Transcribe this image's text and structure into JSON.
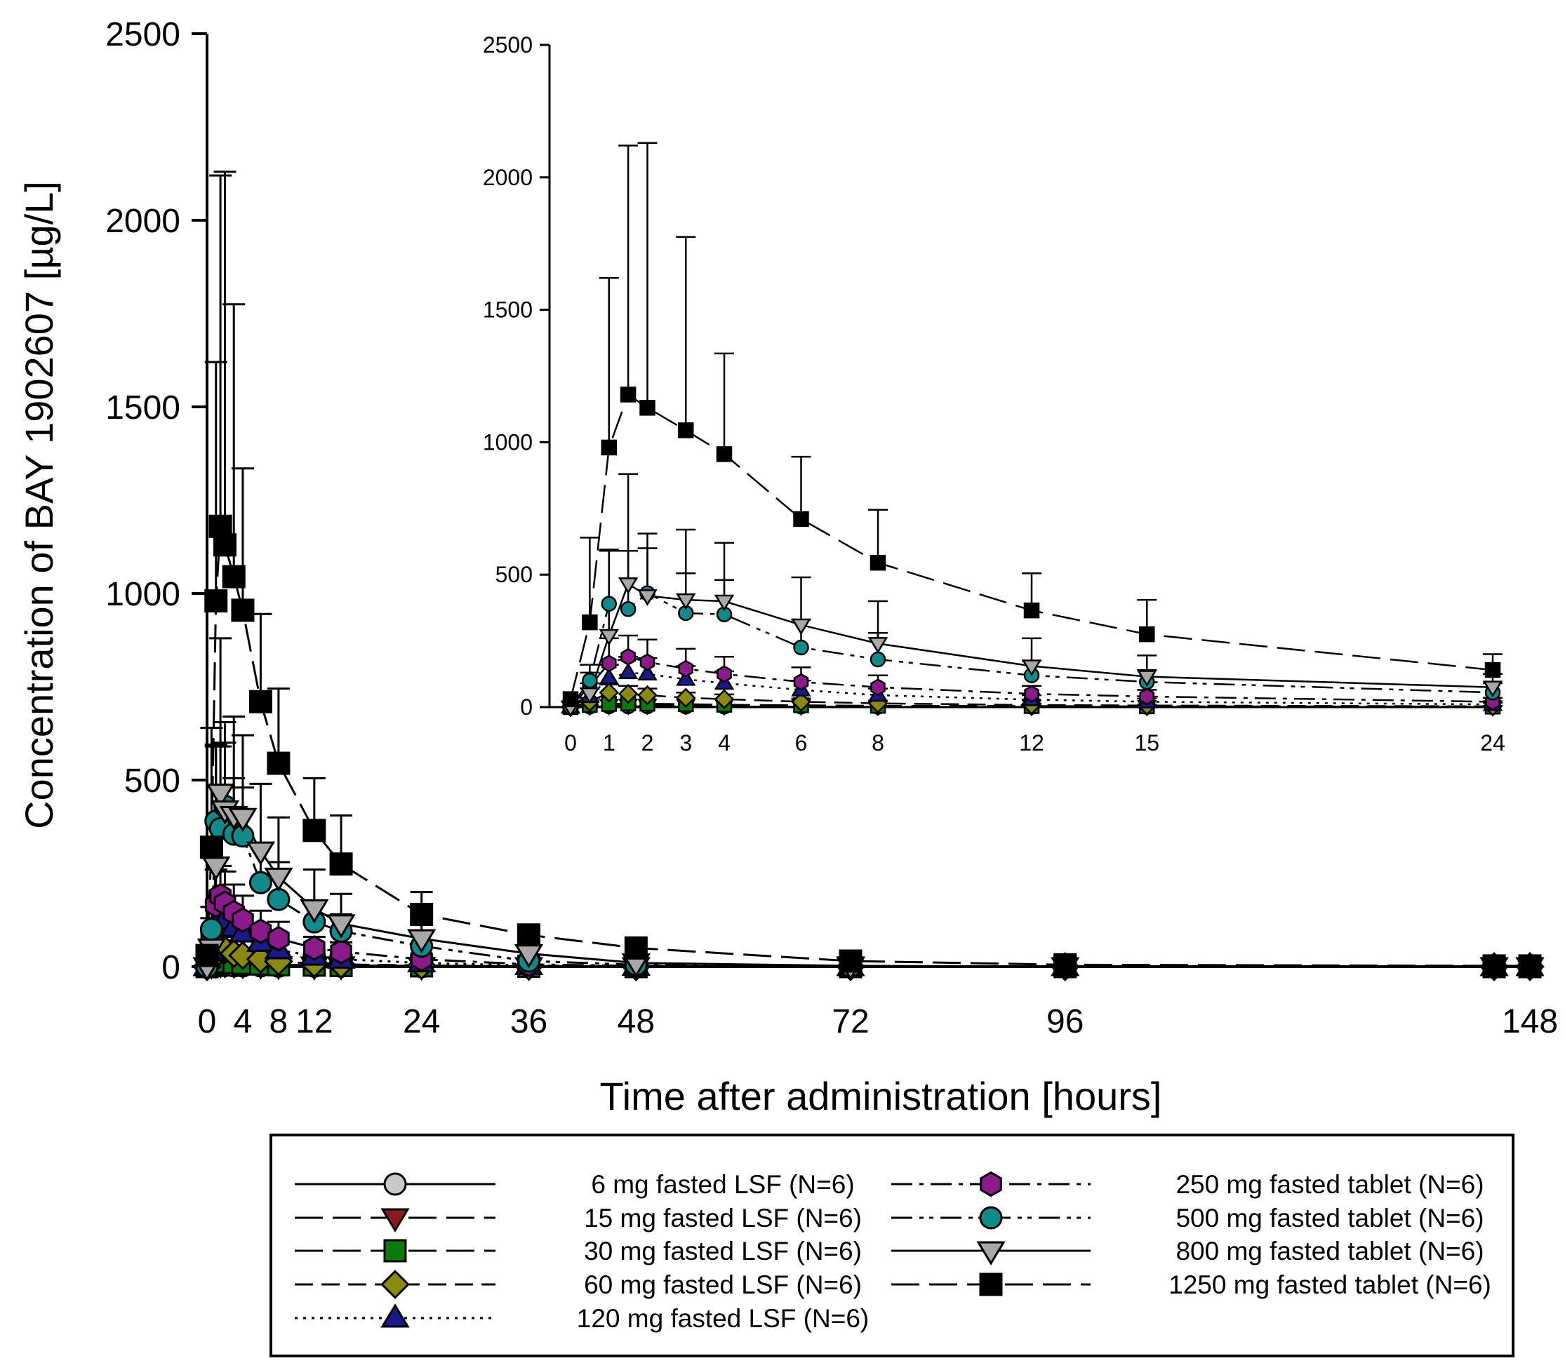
{
  "chart_data": [
    {
      "type": "line",
      "panel": "main",
      "xlabel": "Time after administration [hours]",
      "ylabel": "Concentration of BAY 1902607 [µg/L]",
      "xlim": [
        0,
        148
      ],
      "ylim": [
        0,
        2500
      ],
      "xticks": [
        0,
        4,
        8,
        12,
        24,
        36,
        48,
        72,
        96,
        148
      ],
      "yticks": [
        0,
        500,
        1000,
        1500,
        2000,
        2500
      ],
      "grid": false,
      "legend_position": "bottom",
      "series": [
        {
          "name": "6 mg fasted LSF (N=6)",
          "marker": "circle",
          "color": "#c8c8c8",
          "dash": "solid",
          "x": [
            0,
            0.5,
            1,
            1.5,
            2,
            3,
            4,
            6,
            8,
            12,
            15,
            24,
            36,
            48,
            72,
            96,
            144,
            148
          ],
          "y": [
            0,
            2,
            3,
            3,
            3,
            2,
            2,
            2,
            1,
            1,
            1,
            0,
            0,
            0,
            0,
            0,
            0,
            0
          ]
        },
        {
          "name": "15 mg fasted LSF (N=6)",
          "marker": "triangle-down",
          "color": "#8b1a1a",
          "dash": "longdash",
          "x": [
            0,
            0.5,
            1,
            1.5,
            2,
            3,
            4,
            6,
            8,
            12,
            15,
            24,
            36,
            48,
            72,
            96,
            144,
            148
          ],
          "y": [
            0,
            4,
            6,
            7,
            7,
            6,
            5,
            4,
            3,
            2,
            2,
            1,
            0,
            0,
            0,
            0,
            0,
            0
          ]
        },
        {
          "name": "30 mg fasted LSF (N=6)",
          "marker": "square",
          "color": "#0a7a0a",
          "dash": "longdash",
          "x": [
            0,
            0.5,
            1,
            1.5,
            2,
            3,
            4,
            6,
            8,
            12,
            15,
            24,
            36,
            48,
            72,
            96,
            144,
            148
          ],
          "y": [
            0,
            8,
            12,
            14,
            13,
            11,
            9,
            7,
            5,
            4,
            3,
            2,
            1,
            0,
            0,
            0,
            0,
            0
          ]
        },
        {
          "name": "60 mg fasted LSF (N=6)",
          "marker": "diamond",
          "color": "#8a8a10",
          "dash": "dash",
          "x": [
            0,
            0.5,
            1,
            1.5,
            2,
            3,
            4,
            6,
            8,
            12,
            15,
            24,
            36,
            48,
            72,
            96,
            144,
            148
          ],
          "y": [
            0,
            20,
            55,
            50,
            45,
            35,
            30,
            20,
            14,
            8,
            6,
            3,
            1,
            0,
            0,
            0,
            0,
            0
          ]
        },
        {
          "name": "120 mg fasted LSF (N=6)",
          "marker": "triangle-up",
          "color": "#1a1a8b",
          "dash": "dot",
          "x": [
            0,
            0.5,
            1,
            1.5,
            2,
            3,
            4,
            6,
            8,
            12,
            15,
            24,
            36,
            48,
            72,
            96,
            144,
            148
          ],
          "y": [
            0,
            40,
            110,
            130,
            125,
            105,
            90,
            65,
            45,
            28,
            20,
            10,
            3,
            1,
            0,
            0,
            0,
            0
          ]
        },
        {
          "name": "250 mg fasted tablet (N=6)",
          "marker": "hexagon",
          "color": "#8b1a8b",
          "dash": "dashdot",
          "x": [
            0,
            0.5,
            1,
            1.5,
            2,
            3,
            4,
            6,
            8,
            12,
            15,
            24,
            36,
            48,
            72,
            96,
            144,
            148
          ],
          "y": [
            0,
            80,
            165,
            190,
            170,
            145,
            125,
            95,
            75,
            50,
            40,
            20,
            6,
            2,
            0,
            0,
            0,
            0
          ]
        },
        {
          "name": "500 mg fasted tablet (N=6)",
          "marker": "circle",
          "color": "#118a8a",
          "dash": "dashdotdot",
          "x": [
            0,
            0.5,
            1,
            1.5,
            2,
            3,
            4,
            6,
            8,
            12,
            15,
            24,
            36,
            48,
            72,
            96,
            144,
            148
          ],
          "y": [
            0,
            100,
            390,
            370,
            430,
            355,
            350,
            225,
            180,
            120,
            95,
            55,
            15,
            5,
            1,
            0,
            0,
            0
          ]
        },
        {
          "name": "800 mg fasted tablet (N=6)",
          "marker": "triangle-down",
          "color": "#a8a8a8",
          "dash": "solid",
          "x": [
            0,
            0.5,
            1,
            1.5,
            2,
            3,
            4,
            6,
            8,
            12,
            15,
            24,
            36,
            48,
            72,
            96,
            144,
            148
          ],
          "y": [
            0,
            50,
            270,
            465,
            420,
            405,
            400,
            310,
            240,
            155,
            115,
            75,
            35,
            10,
            2,
            0,
            0,
            0
          ]
        },
        {
          "name": "1250 mg fasted tablet (N=6)",
          "marker": "square",
          "color": "#000000",
          "dash": "longdash",
          "x": [
            0,
            0.5,
            1,
            1.5,
            2,
            3,
            4,
            6,
            8,
            12,
            15,
            24,
            36,
            48,
            72,
            96,
            144,
            148
          ],
          "y": [
            30,
            320,
            980,
            1180,
            1130,
            1045,
            955,
            710,
            545,
            365,
            275,
            140,
            85,
            50,
            15,
            5,
            2,
            2
          ]
        }
      ]
    },
    {
      "type": "line",
      "panel": "inset",
      "xlim": [
        0,
        24
      ],
      "ylim": [
        0,
        2500
      ],
      "xticks": [
        0,
        1,
        2,
        3,
        4,
        6,
        8,
        12,
        15,
        24
      ],
      "yticks": [
        0,
        500,
        1000,
        1500,
        2000,
        2500
      ],
      "grid": false,
      "error_bars_upper": {
        "1250 mg fasted tablet (N=6)": [
          30,
          640,
          1620,
          2120,
          2130,
          1775,
          1335,
          945,
          745,
          505,
          405,
          200
        ],
        "800 mg fasted tablet (N=6)": [
          0,
          90,
          595,
          880,
          655,
          670,
          620,
          490,
          400,
          260,
          195,
          125
        ],
        "500 mg fasted tablet (N=6)": [
          0,
          160,
          590,
          590,
          600,
          505,
          480,
          330,
          280,
          175,
          140,
          90
        ],
        "250 mg fasted tablet (N=6)": [
          0,
          130,
          260,
          270,
          255,
          220,
          190,
          150,
          120,
          80,
          65,
          35
        ],
        "120 mg fasted LSF (N=6)": [
          0,
          70,
          160,
          190,
          185,
          155,
          135,
          100,
          70,
          45,
          32,
          16
        ],
        "60 mg fasted LSF (N=6)": [
          0,
          35,
          85,
          80,
          70,
          55,
          48,
          32,
          22,
          13,
          10,
          5
        ]
      }
    }
  ]
}
